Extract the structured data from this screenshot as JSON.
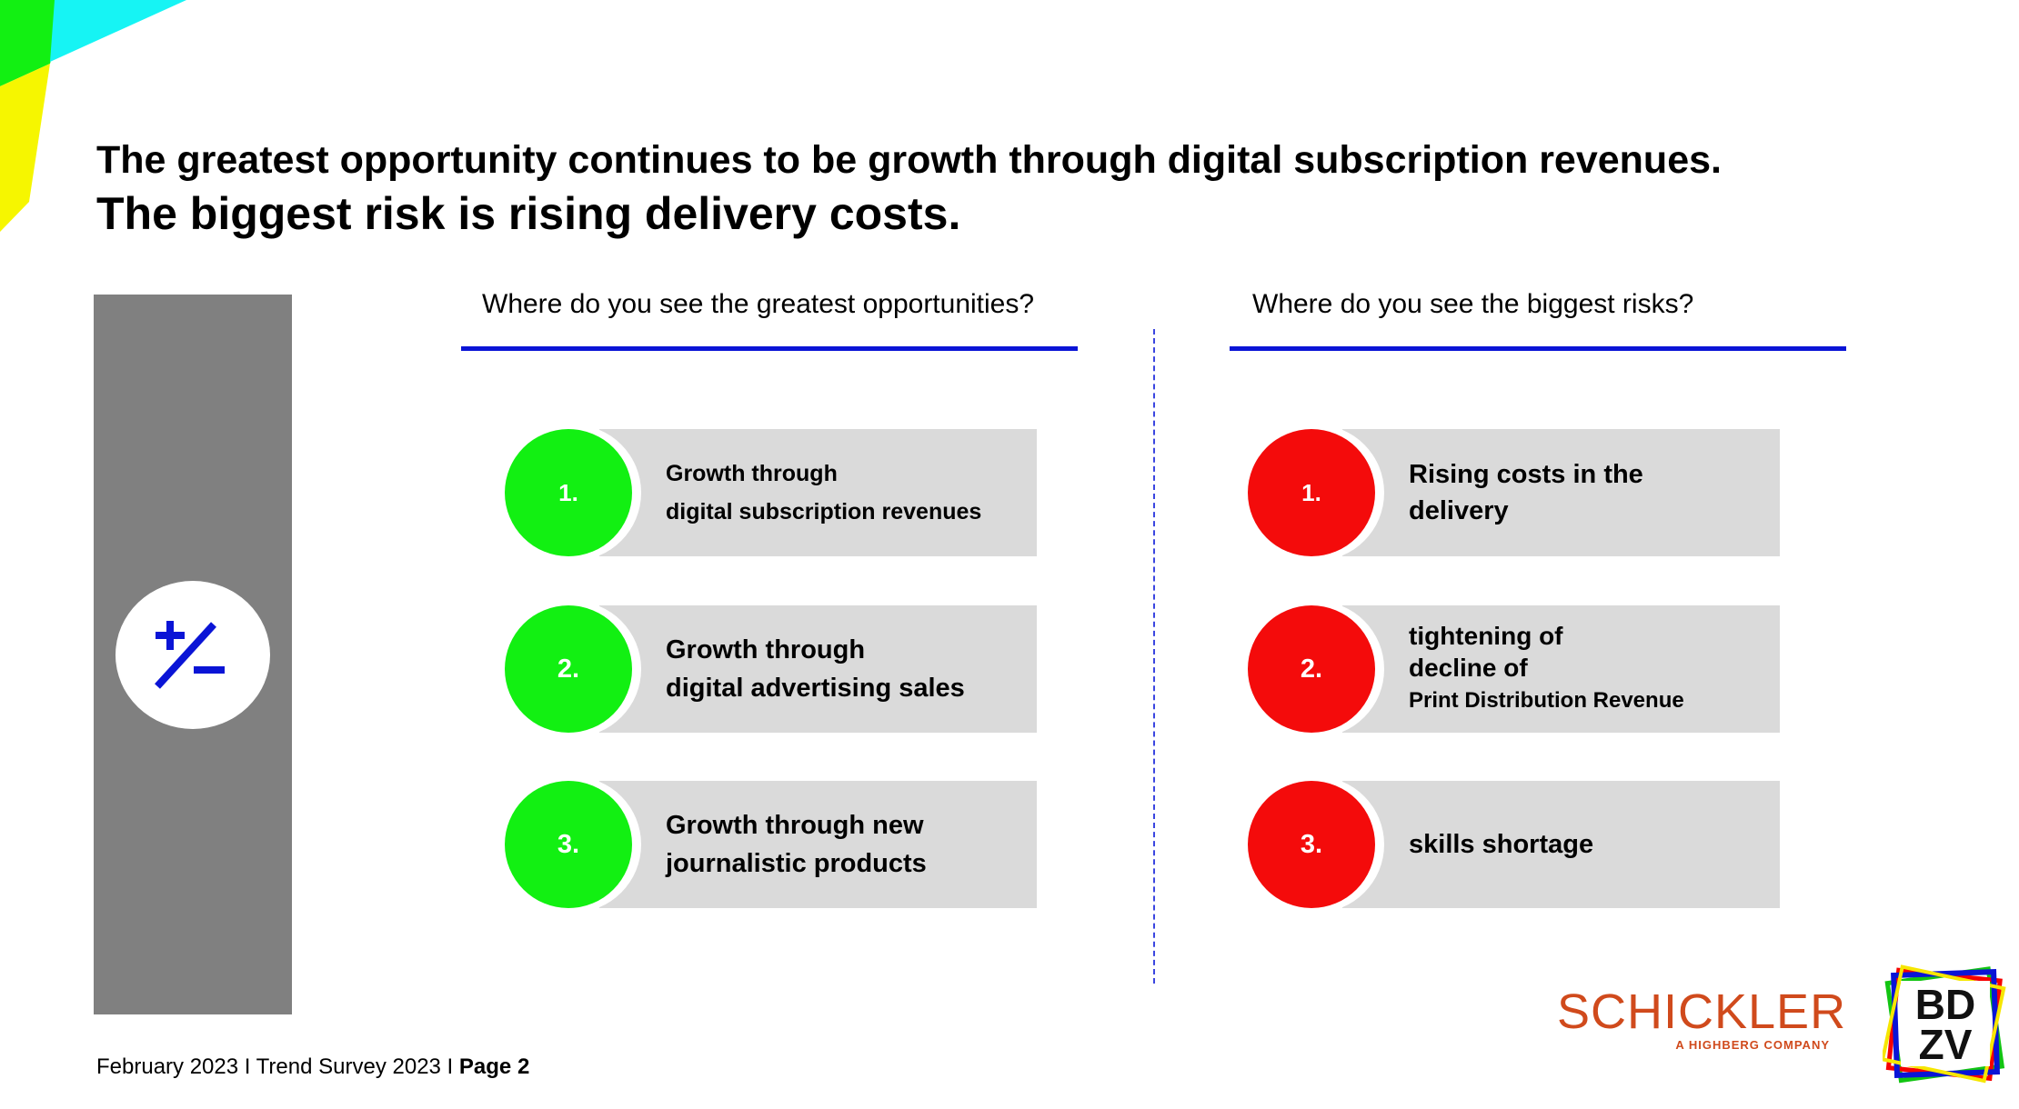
{
  "title": {
    "line1": "The greatest opportunity continues to be growth through digital subscription revenues.",
    "line2": "The biggest risk is rising delivery costs."
  },
  "sidebar": {
    "icon": "plus-minus-icon"
  },
  "opportunities": {
    "header": "Where do you see the greatest opportunities?",
    "color": "#12f012",
    "items": [
      {
        "rank": "1.",
        "lines": [
          "Growth through",
          "digital subscription revenues"
        ]
      },
      {
        "rank": "2.",
        "lines": [
          "Growth through",
          "digital advertising sales"
        ]
      },
      {
        "rank": "3.",
        "lines": [
          "Growth through new",
          "journalistic products"
        ]
      }
    ]
  },
  "risks": {
    "header": "Where do you see the biggest risks?",
    "color": "#f40b0b",
    "items": [
      {
        "rank": "1.",
        "lines": [
          "Rising costs in the",
          "delivery"
        ]
      },
      {
        "rank": "2.",
        "lines": [
          "tightening of",
          "decline of",
          "Print Distribution Revenue"
        ]
      },
      {
        "rank": "3.",
        "lines": [
          "skills shortage"
        ]
      }
    ]
  },
  "footer": {
    "text": "February 2023 I Trend Survey 2023 I ",
    "page": "Page 2"
  },
  "logos": {
    "schickler_name": "SCHICKLER",
    "schickler_tagline": "A HIGHBERG COMPANY",
    "bdzv_top": "BD",
    "bdzv_bottom": "ZV"
  },
  "colors": {
    "accent_rule": "#0a14d6",
    "sidebar": "#808080",
    "item_bar": "#dadada"
  }
}
